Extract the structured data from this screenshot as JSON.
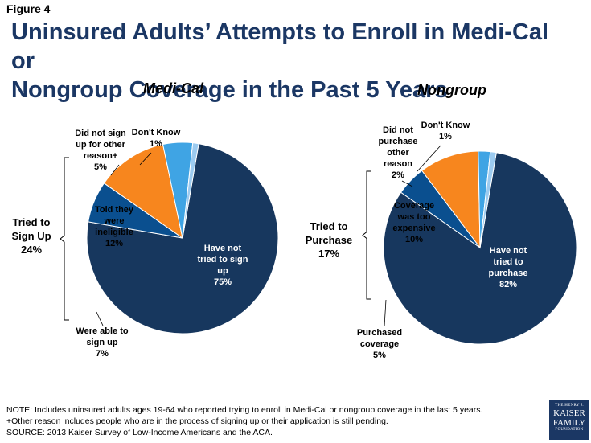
{
  "figure_label": "Figure 4",
  "title_line1": "Uninsured Adults’ Attempts to Enroll in Medi-Cal or",
  "title_line2": "Nongroup Coverage in the Past 5 Years",
  "colors": {
    "dark_blue": "#17375e",
    "mid_blue": "#0a4f8f",
    "orange": "#f7861e",
    "light_blue": "#3fa4e4",
    "pale_blue": "#9ccbf0",
    "title_blue": "#1b3764"
  },
  "chart_data": [
    {
      "type": "pie",
      "title": "Medi-Cal",
      "bracket_label": [
        "Tried to",
        "Sign Up",
        "24%"
      ],
      "slices": [
        {
          "name": "Have not tried to sign up",
          "value": 75,
          "label_lines": [
            "Have not",
            "tried to sign",
            "up",
            "75%"
          ]
        },
        {
          "name": "Were able to sign up",
          "value": 7,
          "label_lines": [
            "Were able to",
            "sign up",
            "7%"
          ]
        },
        {
          "name": "Told they were ineligible",
          "value": 12,
          "label_lines": [
            "Told they",
            "were",
            "ineligible",
            "12%"
          ]
        },
        {
          "name": "Did not sign up for other reason+",
          "value": 5,
          "label_lines": [
            "Did not sign",
            "up for other",
            "reason+",
            "5%"
          ]
        },
        {
          "name": "Don't Know",
          "value": 1,
          "label_lines": [
            "Don't Know",
            "1%"
          ]
        }
      ]
    },
    {
      "type": "pie",
      "title": "Nongroup",
      "bracket_label": [
        "Tried to",
        "Purchase",
        "17%"
      ],
      "slices": [
        {
          "name": "Have not tried to purchase",
          "value": 82,
          "label_lines": [
            "Have not",
            "tried to",
            "purchase",
            "82%"
          ]
        },
        {
          "name": "Purchased coverage",
          "value": 5,
          "label_lines": [
            "Purchased",
            "coverage",
            "5%"
          ]
        },
        {
          "name": "Coverage was too expensive",
          "value": 10,
          "label_lines": [
            "Coverage",
            "was too",
            "expensive",
            "10%"
          ]
        },
        {
          "name": "Did not purchase other reason",
          "value": 2,
          "label_lines": [
            "Did not",
            "purchase",
            "other",
            "reason",
            "2%"
          ]
        },
        {
          "name": "Don't Know",
          "value": 1,
          "label_lines": [
            "Don't Know",
            "1%"
          ]
        }
      ]
    }
  ],
  "notes": [
    "NOTE: Includes uninsured adults ages 19-64 who reported trying to enroll in Medi-Cal or nongroup coverage in the last 5 years.",
    "+Other reason includes people who are in the process of signing up or their application is still pending.",
    "SOURCE: 2013 Kaiser Survey of Low-Income Americans and the ACA."
  ],
  "logo": {
    "line1": "THE HENRY J.",
    "line2": "KAISER",
    "line3": "FAMILY",
    "line4": "FOUNDATION"
  }
}
